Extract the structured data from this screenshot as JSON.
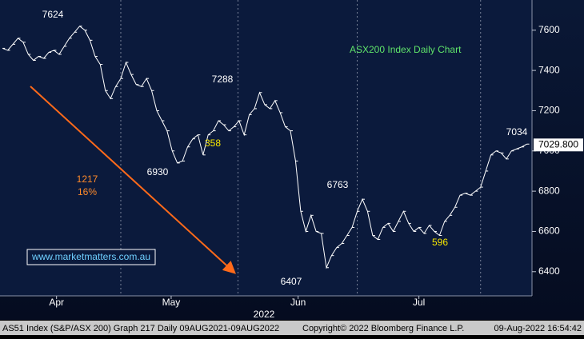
{
  "chart_data": {
    "type": "line",
    "title": "ASX200 Index Daily Chart",
    "series": [
      {
        "name": "AS51 Index",
        "color": "#ffffff",
        "values": [
          7510,
          7500,
          7530,
          7560,
          7540,
          7480,
          7450,
          7470,
          7460,
          7490,
          7500,
          7480,
          7520,
          7560,
          7590,
          7620,
          7600,
          7550,
          7470,
          7430,
          7300,
          7260,
          7320,
          7360,
          7440,
          7380,
          7330,
          7320,
          7360,
          7300,
          7200,
          7150,
          7100,
          7000,
          6940,
          6950,
          7020,
          7060,
          7080,
          6980,
          7080,
          7100,
          7150,
          7130,
          7100,
          7120,
          7150,
          7080,
          7180,
          7210,
          7290,
          7230,
          7210,
          7250,
          7190,
          7120,
          7100,
          6950,
          6700,
          6600,
          6680,
          6600,
          6590,
          6420,
          6480,
          6520,
          6540,
          6580,
          6620,
          6700,
          6760,
          6700,
          6580,
          6560,
          6620,
          6640,
          6600,
          6650,
          6700,
          6640,
          6600,
          6620,
          6590,
          6630,
          6600,
          6580,
          6650,
          6680,
          6720,
          6780,
          6790,
          6780,
          6800,
          6820,
          6900,
          6980,
          7000,
          6990,
          6960,
          7000,
          7010,
          7020,
          7034
        ]
      }
    ],
    "xlim": [
      -0.5,
      103
    ],
    "ylim": [
      6280,
      7750
    ],
    "xticks": [
      {
        "value": 10.5,
        "label": "Apr"
      },
      {
        "value": 32.8,
        "label": "May"
      },
      {
        "value": 57.5,
        "label": "Jun"
      },
      {
        "value": 81,
        "label": "Jul"
      }
    ],
    "vlines": [
      23,
      45.8,
      69,
      93
    ],
    "yticks": [
      6400,
      6600,
      6800,
      7000,
      7200,
      7400,
      7600
    ],
    "year_label": "2022",
    "last_price": {
      "value": 7029.8,
      "label": "7029.800"
    },
    "annotations": [
      "7624",
      "7288",
      "6930",
      "358",
      "1217",
      "16%",
      "6763",
      "6407",
      "596",
      "7034"
    ],
    "website": "www.marketmatters.com.au",
    "footer": {
      "left": "AS51 Index (S&P/ASX 200) Graph 217 Daily 09AUG2021-09AUG2022",
      "center": "Copyright© 2022 Bloomberg Finance L.P.",
      "right": "09-Aug-2022 16:54:42"
    }
  }
}
